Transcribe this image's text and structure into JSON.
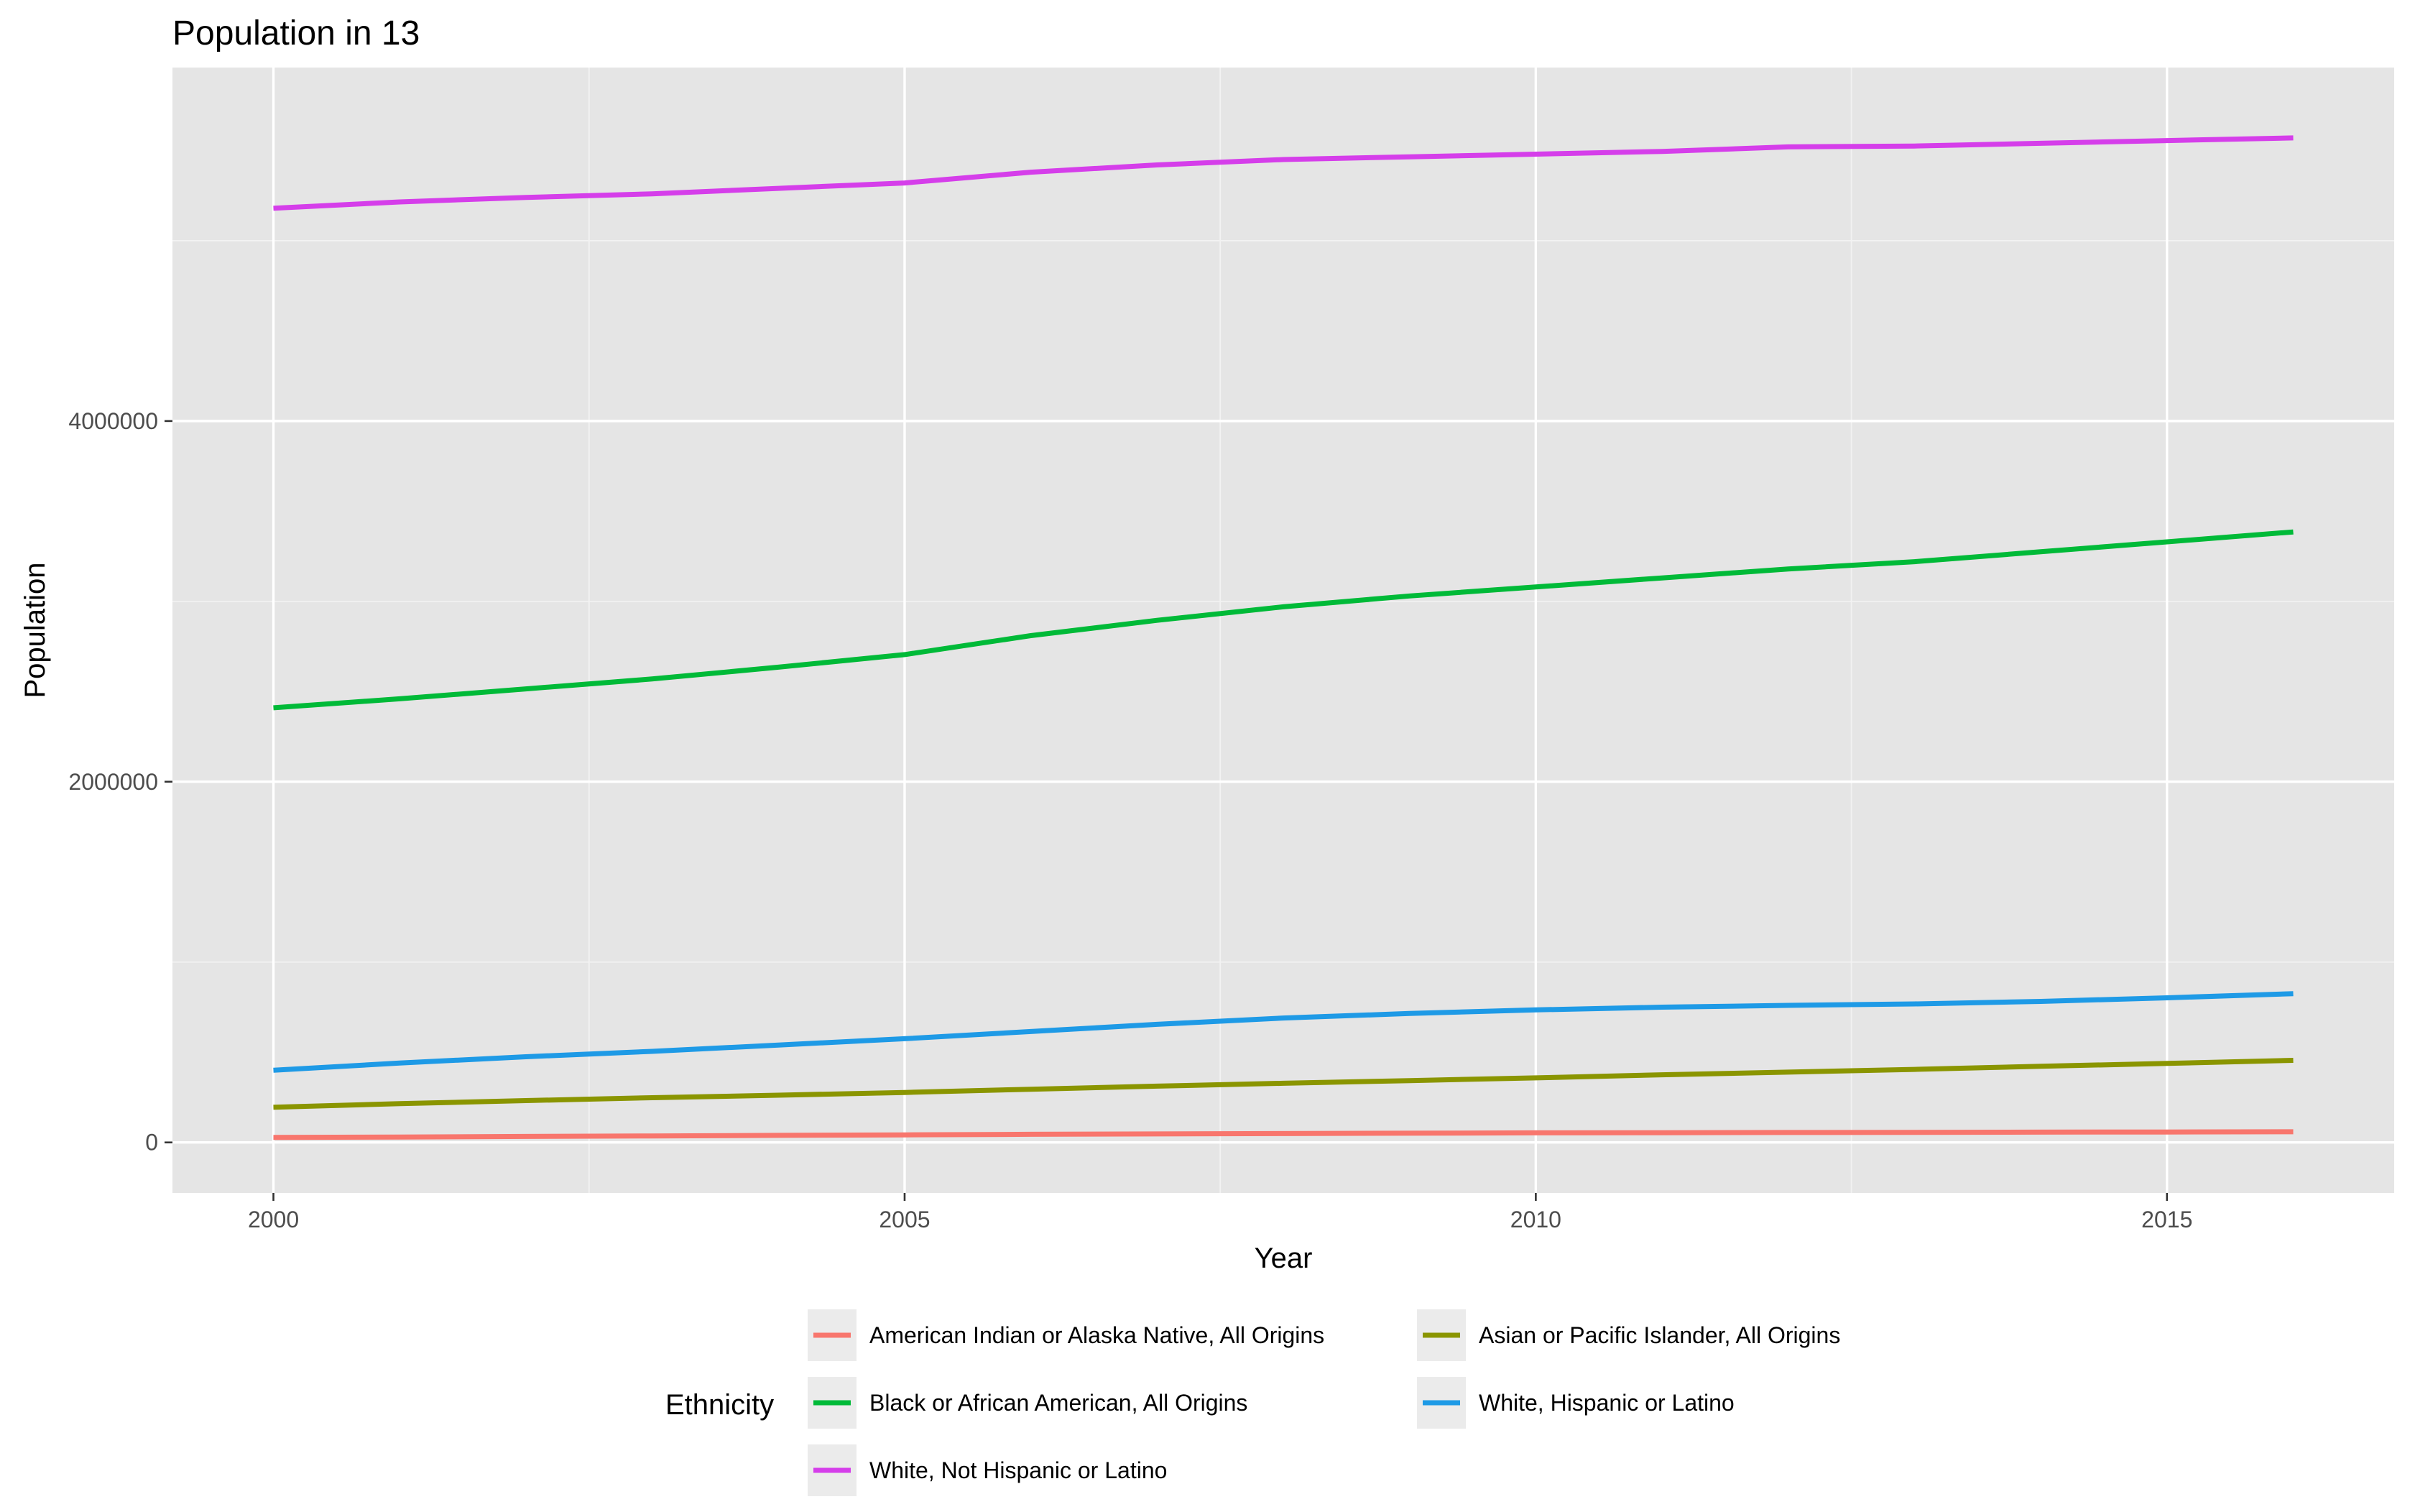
{
  "chart_data": {
    "type": "line",
    "title": "Population in 13",
    "xlabel": "Year",
    "ylabel": "Population",
    "xlim": [
      1999.2,
      2016.8
    ],
    "ylim": [
      -280000,
      5960000
    ],
    "x_ticks": [
      2000,
      2005,
      2010,
      2015
    ],
    "x_tick_labels": [
      "2000",
      "2005",
      "2010",
      "2015"
    ],
    "y_ticks": [
      0,
      2000000,
      4000000
    ],
    "y_tick_labels": [
      "0",
      "2000000",
      "4000000"
    ],
    "grid": true,
    "legend_title": "Ethnicity",
    "legend_position": "bottom",
    "x": [
      2000,
      2001,
      2002,
      2003,
      2004,
      2005,
      2006,
      2007,
      2008,
      2009,
      2010,
      2011,
      2012,
      2013,
      2014,
      2015,
      2016
    ],
    "series": [
      {
        "name": "American Indian or Alaska Native, All Origins",
        "color": "#F8766D",
        "values": [
          28000,
          30000,
          33000,
          36000,
          39000,
          42000,
          45000,
          47000,
          49000,
          51000,
          53000,
          54000,
          55000,
          56000,
          57000,
          58000,
          59000
        ]
      },
      {
        "name": "Black or African American, All Origins",
        "color": "#00BA38",
        "values": [
          2410000,
          2460000,
          2515000,
          2570000,
          2635000,
          2705000,
          2810000,
          2895000,
          2970000,
          3030000,
          3080000,
          3130000,
          3180000,
          3220000,
          3275000,
          3330000,
          3385000
        ]
      },
      {
        "name": "White, Not Hispanic or Latino",
        "color": "#D53EEA",
        "values": [
          5180000,
          5215000,
          5240000,
          5260000,
          5290000,
          5320000,
          5380000,
          5420000,
          5450000,
          5465000,
          5480000,
          5495000,
          5520000,
          5525000,
          5540000,
          5555000,
          5570000
        ]
      },
      {
        "name": "Asian or Pacific Islander, All Origins",
        "color": "#8A9500",
        "values": [
          195000,
          215000,
          232000,
          248000,
          262000,
          277000,
          295000,
          312000,
          328000,
          343000,
          358000,
          375000,
          390000,
          405000,
          422000,
          438000,
          455000
        ]
      },
      {
        "name": "White, Hispanic or Latino",
        "color": "#1E9AE6",
        "values": [
          400000,
          440000,
          475000,
          505000,
          540000,
          575000,
          615000,
          655000,
          690000,
          715000,
          735000,
          750000,
          760000,
          768000,
          782000,
          802000,
          825000
        ]
      }
    ],
    "legend_order": [
      0,
      3,
      1,
      4,
      2
    ]
  }
}
